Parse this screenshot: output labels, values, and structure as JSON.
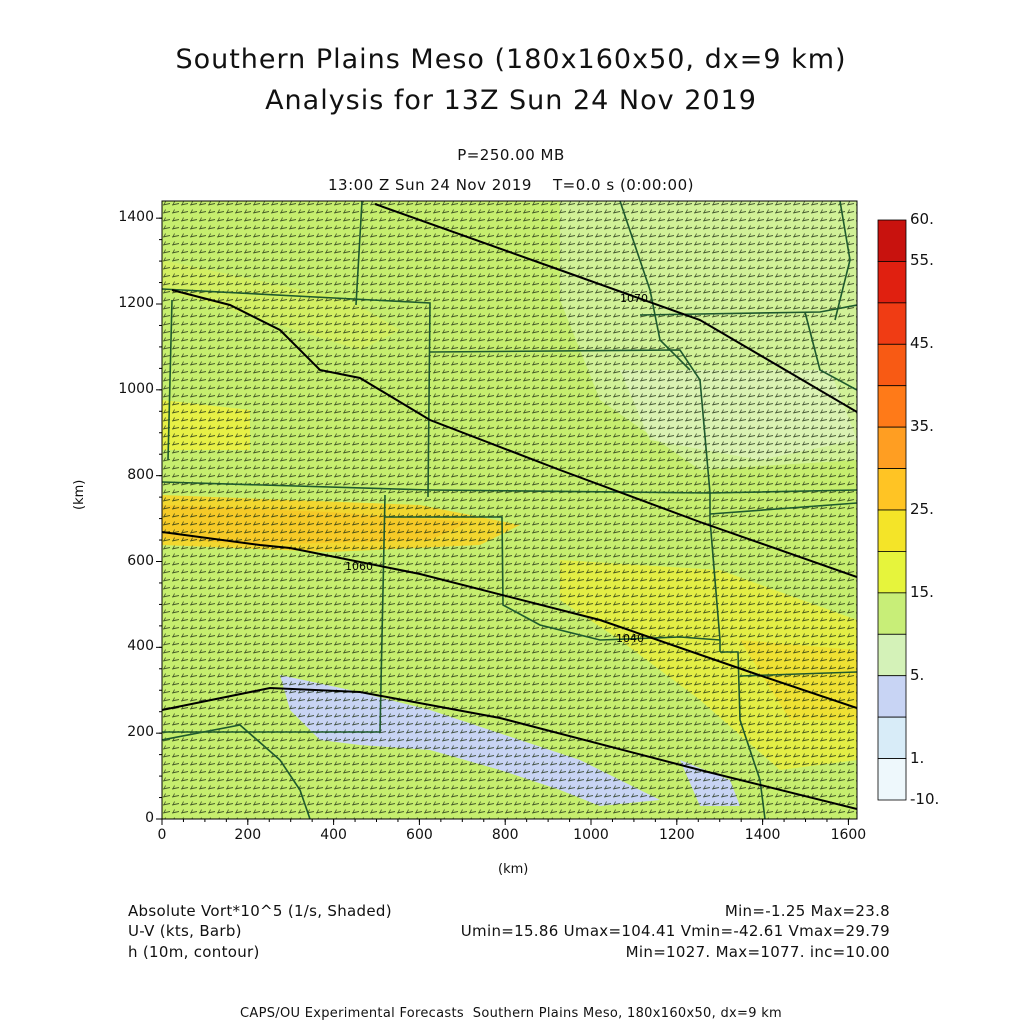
{
  "header": {
    "title_line1": "Southern Plains Meso (180x160x50, dx=9 km)",
    "title_line2": "Analysis for 13Z Sun 24 Nov 2019",
    "level": "P=250.00 MB",
    "time": "13:00 Z Sun 24 Nov 2019    T=0.0 s (0:00:00)"
  },
  "axes": {
    "x_label": "(km)",
    "y_label": "(km)",
    "x_ticks": [
      "0",
      "200",
      "400",
      "600",
      "800",
      "1000",
      "1200",
      "1400",
      "1600"
    ],
    "y_ticks": [
      "0",
      "200",
      "400",
      "600",
      "800",
      "1000",
      "1200",
      "1400"
    ],
    "x_range": [
      0,
      1620
    ],
    "y_range": [
      0,
      1440
    ]
  },
  "colorbar": {
    "labels": [
      "60.",
      "55.",
      "45.",
      "35.",
      "25.",
      "15.",
      "5.",
      "1.",
      "-10."
    ],
    "colors_top_to_bottom": [
      "#c8120e",
      "#e02010",
      "#f03c14",
      "#f85a14",
      "#ff7a18",
      "#ff9e22",
      "#ffc424",
      "#f4e428",
      "#e6f43c",
      "#c8ee78",
      "#d4f2b8",
      "#c8d4f4",
      "#d8ecf8",
      "#eef8fc"
    ]
  },
  "contours": {
    "labels": [
      "1070",
      "1060",
      "1040"
    ]
  },
  "footer": {
    "field1_name": "Absolute Vort*10^5 (1/s, Shaded)",
    "field1_stats": "Min=-1.25 Max=23.8",
    "field2_name": "U-V (kts, Barb)",
    "field2_stats": "Umin=15.86 Umax=104.41 Vmin=-42.61 Vmax=29.79",
    "field3_name": "h (10m, contour)",
    "field3_stats": "Min=1027. Max=1077. inc=10.00",
    "credit": "CAPS/OU Experimental Forecasts  Southern Plains Meso, 180x160x50, dx=9 km"
  }
}
